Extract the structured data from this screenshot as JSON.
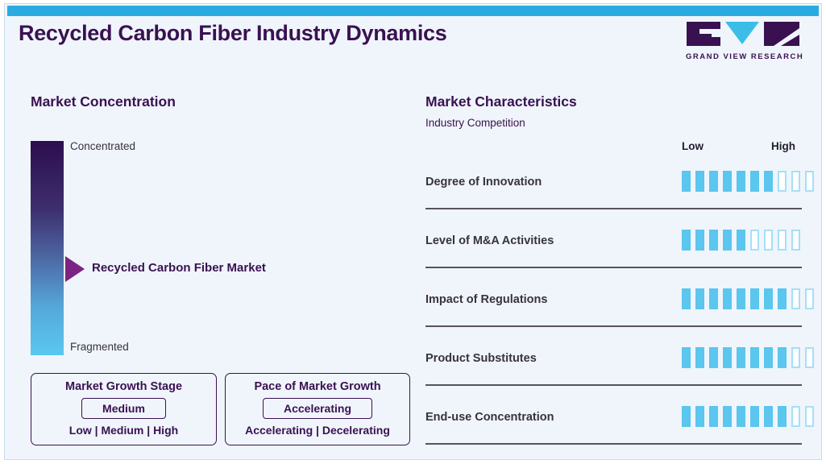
{
  "header": {
    "title": "Recycled Carbon Fiber Industry Dynamics",
    "logo_text": "GRAND VIEW RESEARCH"
  },
  "market_concentration": {
    "heading": "Market Concentration",
    "scale_top": "Concentrated",
    "scale_bottom": "Fragmented",
    "marker_label": "Recycled Carbon Fiber Market",
    "growth_stage": {
      "title": "Market Growth Stage",
      "selected": "Medium",
      "options_line": "Low | Medium | High"
    },
    "growth_pace": {
      "title": "Pace of Market Growth",
      "selected": "Accelerating",
      "options_line": "Accelerating | Decelerating"
    }
  },
  "market_characteristics": {
    "heading": "Market Characteristics",
    "subtitle": "Industry Competition",
    "scale_left": "Low",
    "scale_right": "High",
    "rows": [
      {
        "label": "Degree of Innovation",
        "filled": 7,
        "empty": 3
      },
      {
        "label": "Level of M&A Activities",
        "filled": 5,
        "empty": 4
      },
      {
        "label": "Impact of Regulations",
        "filled": 8,
        "empty": 2
      },
      {
        "label": "Product Substitutes",
        "filled": 8,
        "empty": 2
      },
      {
        "label": "End-use Concentration",
        "filled": 8,
        "empty": 2
      }
    ]
  },
  "chart_data": {
    "type": "bar",
    "title": "Market Characteristics - Industry Competition",
    "categories": [
      "Degree of Innovation",
      "Level of M&A Activities",
      "Impact of Regulations",
      "Product Substitutes",
      "End-use Concentration"
    ],
    "values": [
      7,
      5,
      8,
      8,
      8
    ],
    "segment_totals": [
      10,
      9,
      10,
      10,
      10
    ],
    "xlabel": "",
    "ylabel": "",
    "scale_labels": [
      "Low",
      "High"
    ],
    "legend_position": "none",
    "concentration_scale": {
      "axis": [
        "Concentrated",
        "Fragmented"
      ],
      "marker": "Recycled Carbon Fiber Market",
      "marker_position_pct_from_concentrated": 59
    }
  },
  "colors": {
    "accent_cyan": "#29ABE2",
    "brand_purple": "#3A1150",
    "arrow_purple": "#7B2483",
    "seg_fill": "#5BC6EE",
    "seg_border": "#A6DFF7",
    "grad_top": "#2C0D4E",
    "grad_bottom": "#5AC8F0",
    "panel_bg": "#EFF5FB",
    "panel_border": "#C7DBEB",
    "divider": "#57525E",
    "text_dark": "#38323F",
    "scale_text": "#221D2E"
  }
}
